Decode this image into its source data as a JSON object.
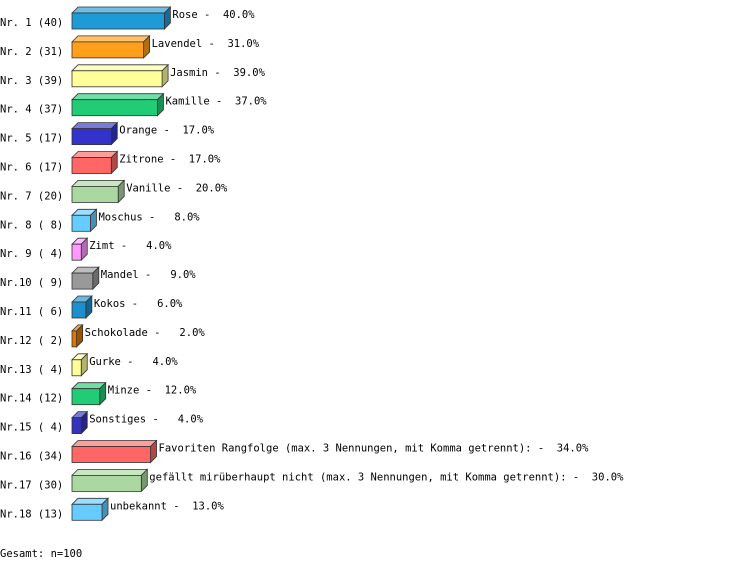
{
  "chart_data": {
    "type": "bar3d",
    "categories": [
      "Nr. 1 (40)",
      "Nr. 2 (31)",
      "Nr. 3 (39)",
      "Nr. 4 (37)",
      "Nr. 5 (17)",
      "Nr. 6 (17)",
      "Nr. 7 (20)",
      "Nr. 8 ( 8)",
      "Nr. 9 ( 4)",
      "Nr.10 ( 9)",
      "Nr.11 ( 6)",
      "Nr.12 ( 2)",
      "Nr.13 ( 4)",
      "Nr.14 (12)",
      "Nr.15 ( 4)",
      "Nr.16 (34)",
      "Nr.17 (30)",
      "Nr.18 (13)"
    ],
    "values": [
      40,
      31,
      39,
      37,
      17,
      17,
      20,
      8,
      4,
      9,
      6,
      2,
      4,
      12,
      4,
      34,
      30,
      13
    ],
    "value_labels": [
      "Rose -  40.0%",
      "Lavendel -  31.0%",
      "Jasmin -  39.0%",
      "Kamille -  37.0%",
      "Orange -  17.0%",
      "Zitrone -  17.0%",
      "Vanille -  20.0%",
      "Moschus -   8.0%",
      "Zimt -   4.0%",
      "Mandel -   9.0%",
      "Kokos -   6.0%",
      "Schokolade -   2.0%",
      "Gurke -   4.0%",
      "Minze -  12.0%",
      "Sonstiges -   4.0%",
      "Favoriten Rangfolge (max. 3 Nennungen, mit Komma getrennt): -  34.0%",
      "gefällt mirüberhaupt nicht (max. 3 Nennungen, mit Komma getrennt): -  30.0%",
      "unbekannt -  13.0%"
    ],
    "colors": [
      "#1e9bd7",
      "#ff9f1a",
      "#ffff99",
      "#22cc77",
      "#3333cc",
      "#ff6666",
      "#aad8a0",
      "#66ccff",
      "#ff99ff",
      "#999999",
      "#1e8fcc",
      "#dd7700",
      "#ffff99",
      "#22cc77",
      "#3333bb",
      "#ff6666",
      "#aad8a0",
      "#66ccff"
    ],
    "note": "Gesamt: n=100"
  }
}
